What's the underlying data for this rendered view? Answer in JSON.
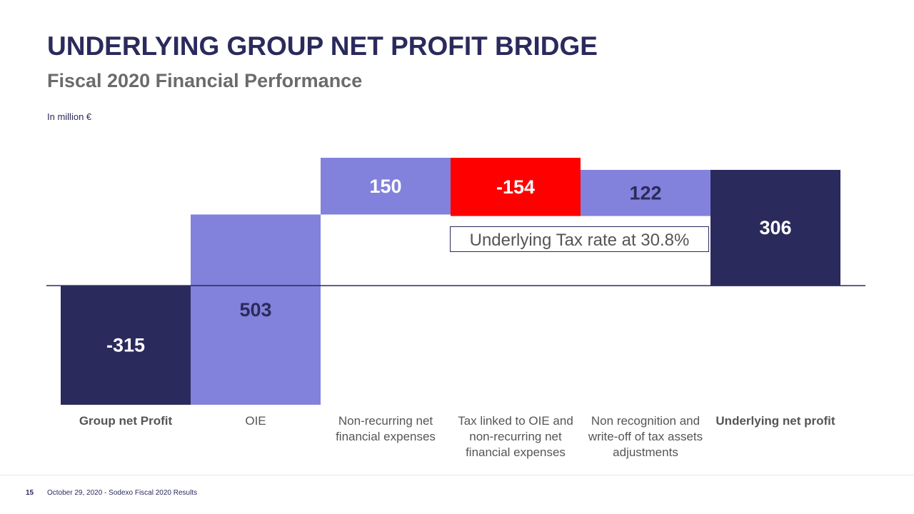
{
  "chart_data": {
    "type": "waterfall",
    "title": "UNDERLYING GROUP NET PROFIT BRIDGE",
    "subtitle": "Fiscal 2020 Financial Performance",
    "unit_label": "In million €",
    "categories": [
      "Group net Profit",
      "OIE",
      "Non-recurring net financial expenses",
      "Tax linked to OIE and non-recurring net financial expenses",
      "Non recognition and write-off of tax assets adjustments",
      "Underlying net profit"
    ],
    "values": [
      -315,
      503,
      150,
      -154,
      122,
      306
    ],
    "totals": [
      true,
      false,
      false,
      false,
      false,
      true
    ],
    "colors": [
      "#2b2a5c",
      "#8282dc",
      "#8282dc",
      "#ff0000",
      "#8282dc",
      "#2b2a5c"
    ],
    "annotation": "Underlying Tax rate at 30.8%"
  },
  "footer": {
    "page": "15",
    "text": "October 29, 2020 - Sodexo Fiscal 2020 Results"
  }
}
